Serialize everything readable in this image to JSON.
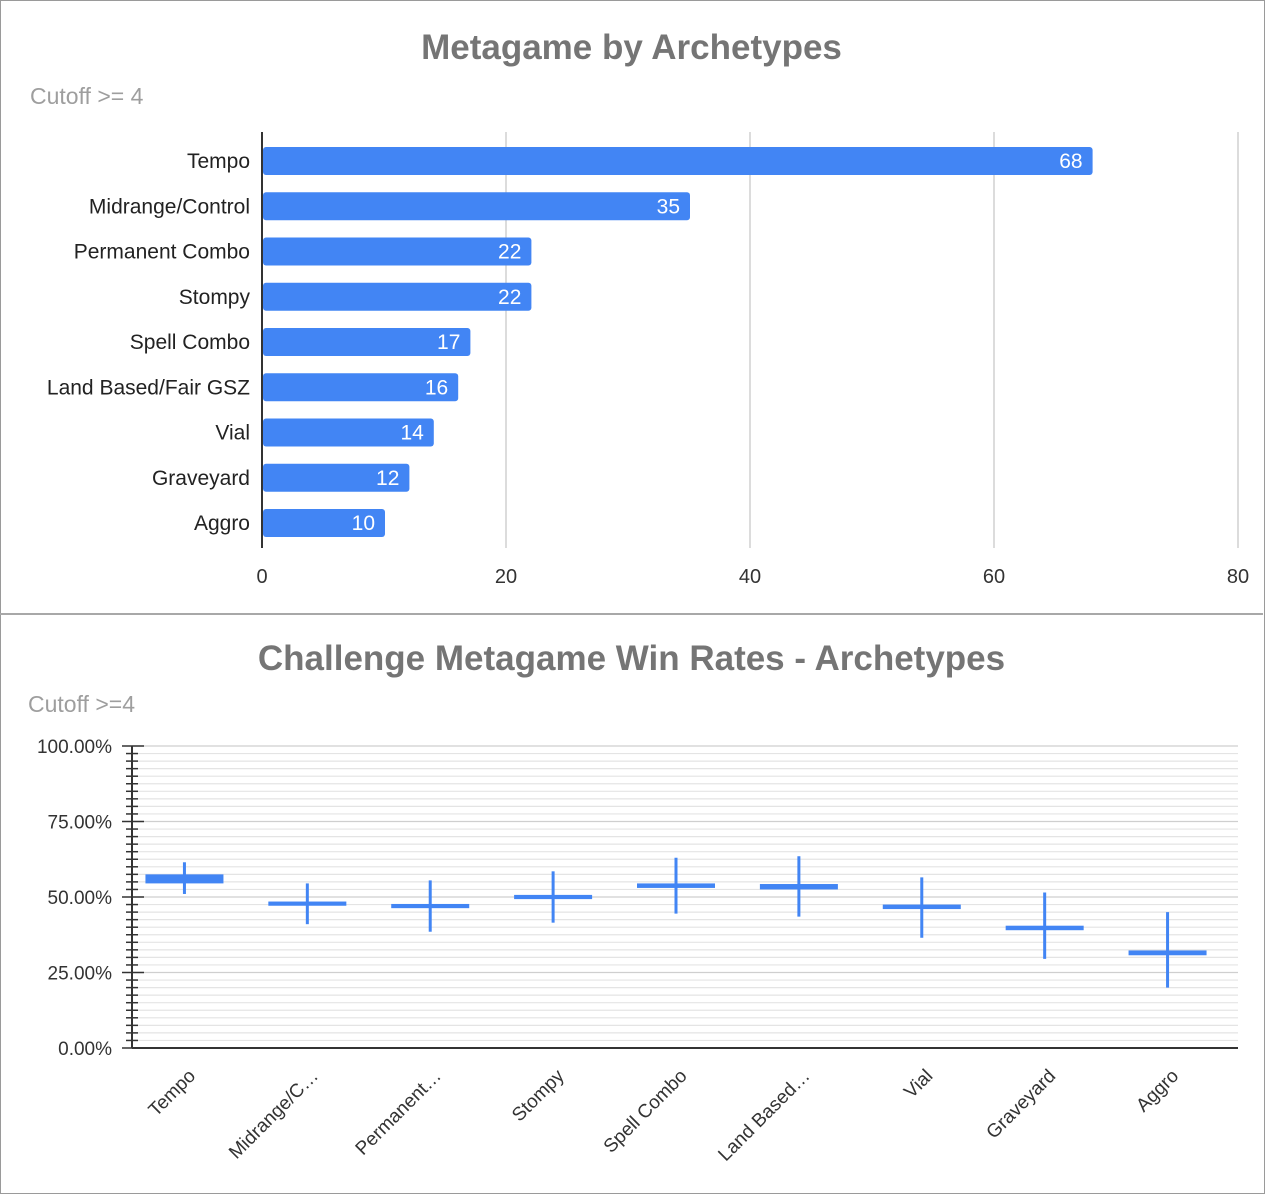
{
  "chart_data": [
    {
      "type": "bar",
      "orientation": "horizontal",
      "title": "Metagame by Archetypes",
      "subtitle": "Cutoff >= 4",
      "categories": [
        "Tempo",
        "Midrange/Control",
        "Permanent Combo",
        "Stompy",
        "Spell Combo",
        "Land Based/Fair GSZ",
        "Vial",
        "Graveyard",
        "Aggro"
      ],
      "values": [
        68,
        35,
        22,
        22,
        17,
        16,
        14,
        12,
        10
      ],
      "xlim": [
        0,
        80
      ],
      "xticks": [
        "0",
        "20",
        "40",
        "60",
        "80"
      ],
      "grid": true,
      "data_labels": true,
      "color": "#4285f4"
    },
    {
      "type": "candlestick",
      "title": "Challenge Metagame Win Rates - Archetypes",
      "subtitle": "Cutoff >=4",
      "categories": [
        "Tempo",
        "Midrange/C…",
        "Permanent…",
        "Stompy",
        "Spell Combo",
        "Land Based…",
        "Vial",
        "Graveyard",
        "Aggro"
      ],
      "low": [
        51.0,
        41.0,
        38.5,
        41.5,
        44.5,
        43.5,
        36.5,
        29.5,
        20.0
      ],
      "open": [
        55.0,
        47.6,
        46.8,
        49.8,
        53.5,
        53.0,
        46.5,
        39.5,
        31.2
      ],
      "close": [
        57.0,
        48.0,
        47.2,
        50.2,
        54.0,
        53.8,
        47.0,
        40.0,
        31.8
      ],
      "high": [
        61.5,
        54.5,
        55.5,
        58.5,
        63.0,
        63.5,
        56.5,
        51.5,
        45.0
      ],
      "ylim": [
        0,
        100
      ],
      "yticks": [
        "0.00%",
        "25.00%",
        "50.00%",
        "75.00%",
        "100.00%"
      ],
      "grid": true,
      "color": "#4285f4"
    }
  ]
}
